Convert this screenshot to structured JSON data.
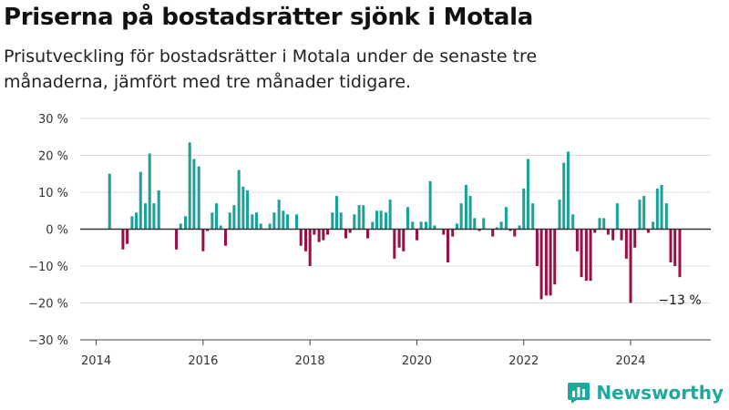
{
  "chart_data": {
    "type": "bar",
    "title": "Priserna på bostadsrätter sjönk i Motala",
    "subtitle": "Prisutveckling för bostadsrätter i Motala under de senaste tre månaderna, jämfört med tre månader tidigare.",
    "xlabel": "",
    "ylabel": "",
    "ylim": [
      -30,
      30
    ],
    "yticks": [
      30,
      20,
      10,
      0,
      -10,
      -20,
      -30
    ],
    "ytick_labels": [
      "30 %",
      "20 %",
      "10 %",
      "0 %",
      "−10 %",
      "−20 %",
      "−30 %"
    ],
    "xticks": [
      2014,
      2016,
      2018,
      2020,
      2022,
      2024
    ],
    "xlim": [
      2013.7,
      2025.5
    ],
    "grid": true,
    "colors": {
      "positive": "#1aa19a",
      "negative": "#9b0f48"
    },
    "annotation": {
      "text": "−13 %",
      "x": 2024.92,
      "y": -13
    },
    "series": [
      {
        "x": [
          2014.25,
          2014.5,
          2014.58,
          2014.67,
          2014.75,
          2014.83,
          2014.92,
          2015.0,
          2015.08,
          2015.17,
          2015.5,
          2015.58,
          2015.67,
          2015.75,
          2015.83,
          2015.92,
          2016.0,
          2016.08,
          2016.17,
          2016.25,
          2016.33,
          2016.42,
          2016.5,
          2016.58,
          2016.67,
          2016.75,
          2016.83,
          2016.92,
          2017.0,
          2017.08,
          2017.25,
          2017.33,
          2017.42,
          2017.5,
          2017.58,
          2017.75,
          2017.83,
          2017.92,
          2018.0,
          2018.08,
          2018.17,
          2018.25,
          2018.33,
          2018.42,
          2018.5,
          2018.58,
          2018.67,
          2018.75,
          2018.83,
          2018.92,
          2019.0,
          2019.08,
          2019.17,
          2019.25,
          2019.33,
          2019.42,
          2019.5,
          2019.58,
          2019.67,
          2019.75,
          2019.83,
          2019.92,
          2020.0,
          2020.08,
          2020.17,
          2020.25,
          2020.33,
          2020.5,
          2020.58,
          2020.67,
          2020.75,
          2020.83,
          2020.92,
          2021.0,
          2021.08,
          2021.17,
          2021.25,
          2021.42,
          2021.5,
          2021.58,
          2021.67,
          2021.75,
          2021.83,
          2021.92,
          2022.0,
          2022.08,
          2022.17,
          2022.25,
          2022.33,
          2022.42,
          2022.5,
          2022.58,
          2022.67,
          2022.75,
          2022.83,
          2022.92,
          2023.0,
          2023.08,
          2023.17,
          2023.25,
          2023.33,
          2023.42,
          2023.5,
          2023.58,
          2023.67,
          2023.75,
          2023.83,
          2023.92,
          2024.0,
          2024.08,
          2024.17,
          2024.25,
          2024.33,
          2024.42,
          2024.5,
          2024.58,
          2024.67,
          2024.75,
          2024.83,
          2024.92
        ],
        "values": [
          15,
          -5.5,
          -4,
          3.5,
          4.5,
          15.5,
          7,
          20.5,
          7,
          10.5,
          -5.5,
          1.5,
          3.5,
          23.5,
          19,
          17,
          -6,
          -0.5,
          4.5,
          7,
          1,
          -4.5,
          4.5,
          6.5,
          16,
          11.5,
          10.5,
          4,
          4.5,
          1.5,
          1.5,
          4.5,
          8,
          5,
          4,
          4,
          -4.5,
          -6,
          -10,
          -1.5,
          -3.5,
          -3,
          -1.5,
          4.5,
          9,
          4.5,
          -2.5,
          -1,
          4,
          6.5,
          6.5,
          -2.5,
          2,
          5,
          5,
          4.5,
          8,
          -8,
          -5,
          -6,
          6,
          2,
          -3,
          2,
          2,
          13,
          1,
          -1.5,
          -9,
          -2,
          1.5,
          7,
          12,
          9,
          3,
          -0.5,
          3,
          -2,
          0.5,
          2,
          6,
          -0.5,
          -2,
          1,
          11,
          19,
          7,
          -10,
          -19,
          -18,
          -18,
          -15,
          8,
          18,
          21,
          4,
          -6,
          -13,
          -14,
          -14,
          -1,
          3,
          3,
          -1.5,
          -3,
          7,
          -3,
          -8,
          -20,
          -5,
          8,
          9,
          -1,
          2,
          11,
          12,
          7,
          -9,
          -10,
          -13
        ]
      }
    ]
  },
  "brand": {
    "name": "Newsworthy",
    "icon": "bar-chart-logo-icon",
    "color": "#1fa89c"
  }
}
